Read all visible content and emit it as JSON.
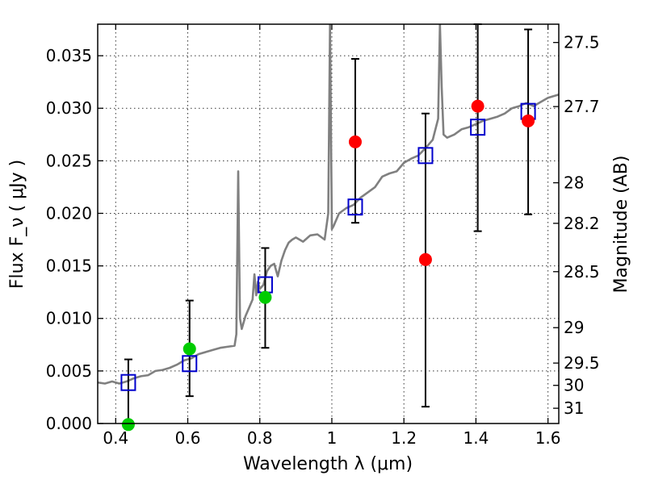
{
  "chart_data": {
    "type": "scatter",
    "xlabel": "Wavelength  λ (μm)",
    "ylabel": "Flux  F_ν  ( μJy )",
    "ylabel_right": "Magnitude (AB)",
    "xlim": [
      0.35,
      1.63
    ],
    "ylim": [
      0.0,
      0.038
    ],
    "grid": true,
    "x_ticks": [
      {
        "value": 0.4,
        "label": "0.4"
      },
      {
        "value": 0.6,
        "label": "0.6"
      },
      {
        "value": 0.8,
        "label": "0.8"
      },
      {
        "value": 1.0,
        "label": "1"
      },
      {
        "value": 1.2,
        "label": "1.2"
      },
      {
        "value": 1.4,
        "label": "1.4"
      },
      {
        "value": 1.6,
        "label": "1.6"
      }
    ],
    "y_ticks": [
      {
        "value": 0.0,
        "label": "0.000"
      },
      {
        "value": 0.005,
        "label": "0.005"
      },
      {
        "value": 0.01,
        "label": "0.010"
      },
      {
        "value": 0.015,
        "label": "0.015"
      },
      {
        "value": 0.02,
        "label": "0.020"
      },
      {
        "value": 0.025,
        "label": "0.025"
      },
      {
        "value": 0.03,
        "label": "0.030"
      },
      {
        "value": 0.035,
        "label": "0.035"
      }
    ],
    "right_ticks": [
      {
        "flux": 0.03626,
        "label": "27.5"
      },
      {
        "flux": 0.03016,
        "label": "27.7"
      },
      {
        "flux": 0.02291,
        "label": "28"
      },
      {
        "flux": 0.01905,
        "label": "28.2"
      },
      {
        "flux": 0.01445,
        "label": "28.5"
      },
      {
        "flux": 0.00912,
        "label": "29"
      },
      {
        "flux": 0.00575,
        "label": "29.5"
      },
      {
        "flux": 0.00363,
        "label": "30"
      },
      {
        "flux": 0.00145,
        "label": "31"
      }
    ],
    "spectrum": {
      "color": "#808080",
      "x": [
        0.35,
        0.37,
        0.39,
        0.41,
        0.43,
        0.45,
        0.47,
        0.49,
        0.51,
        0.53,
        0.55,
        0.57,
        0.59,
        0.61,
        0.63,
        0.65,
        0.67,
        0.69,
        0.71,
        0.73,
        0.735,
        0.74,
        0.745,
        0.75,
        0.76,
        0.77,
        0.78,
        0.785,
        0.79,
        0.795,
        0.8,
        0.81,
        0.82,
        0.83,
        0.84,
        0.85,
        0.86,
        0.87,
        0.88,
        0.89,
        0.9,
        0.92,
        0.94,
        0.96,
        0.98,
        0.99,
        0.995,
        1.0,
        1.005,
        1.01,
        1.02,
        1.04,
        1.06,
        1.08,
        1.1,
        1.12,
        1.14,
        1.16,
        1.18,
        1.2,
        1.22,
        1.24,
        1.26,
        1.28,
        1.295,
        1.3,
        1.305,
        1.31,
        1.32,
        1.34,
        1.36,
        1.38,
        1.4,
        1.42,
        1.44,
        1.46,
        1.48,
        1.5,
        1.52,
        1.54,
        1.56,
        1.58,
        1.6,
        1.63
      ],
      "y": [
        0.0039,
        0.0038,
        0.004,
        0.0038,
        0.004,
        0.0043,
        0.0045,
        0.0046,
        0.005,
        0.0051,
        0.0053,
        0.0056,
        0.006,
        0.0062,
        0.0066,
        0.0068,
        0.007,
        0.0072,
        0.0073,
        0.0074,
        0.0085,
        0.024,
        0.01,
        0.009,
        0.0102,
        0.011,
        0.0118,
        0.0142,
        0.0122,
        0.0135,
        0.0128,
        0.0132,
        0.0145,
        0.015,
        0.0152,
        0.014,
        0.0155,
        0.0165,
        0.0172,
        0.0175,
        0.0177,
        0.0173,
        0.0179,
        0.018,
        0.0175,
        0.02,
        0.038,
        0.0185,
        0.0188,
        0.0192,
        0.02,
        0.0205,
        0.0208,
        0.0215,
        0.022,
        0.0225,
        0.0235,
        0.0238,
        0.024,
        0.0248,
        0.0252,
        0.0255,
        0.0262,
        0.027,
        0.029,
        0.038,
        0.032,
        0.0275,
        0.0272,
        0.0275,
        0.028,
        0.0282,
        0.0285,
        0.0288,
        0.029,
        0.0292,
        0.0295,
        0.03,
        0.0302,
        0.0305,
        0.0302,
        0.0306,
        0.031,
        0.0313
      ]
    },
    "series": [
      {
        "marker": "open-square",
        "color": "#0000cc",
        "x": [
          0.435,
          0.605,
          0.815,
          1.065,
          1.26,
          1.405,
          1.545
        ],
        "values": [
          0.0039,
          0.0057,
          0.0132,
          0.0206,
          0.0255,
          0.0282,
          0.0297
        ]
      },
      {
        "marker": "filled-circle",
        "color": "#00cc00",
        "x": [
          0.435,
          0.605,
          0.815
        ],
        "values": [
          -0.0001,
          0.0071,
          0.012
        ]
      },
      {
        "marker": "filled-circle",
        "color": "#ff0000",
        "x": [
          1.065,
          1.26,
          1.405,
          1.545
        ],
        "values": [
          0.0268,
          0.0156,
          0.0302,
          0.0288
        ]
      }
    ],
    "error_bars": [
      {
        "x": 0.435,
        "low": 0.0,
        "high": 0.0061
      },
      {
        "x": 0.605,
        "low": 0.0026,
        "high": 0.0117
      },
      {
        "x": 0.815,
        "low": 0.0072,
        "high": 0.0167
      },
      {
        "x": 1.065,
        "low": 0.0191,
        "high": 0.0347
      },
      {
        "x": 1.26,
        "low": 0.0016,
        "high": 0.0295
      },
      {
        "x": 1.405,
        "low": 0.0183,
        "high": 0.038
      },
      {
        "x": 1.545,
        "low": 0.0199,
        "high": 0.0375
      }
    ]
  }
}
